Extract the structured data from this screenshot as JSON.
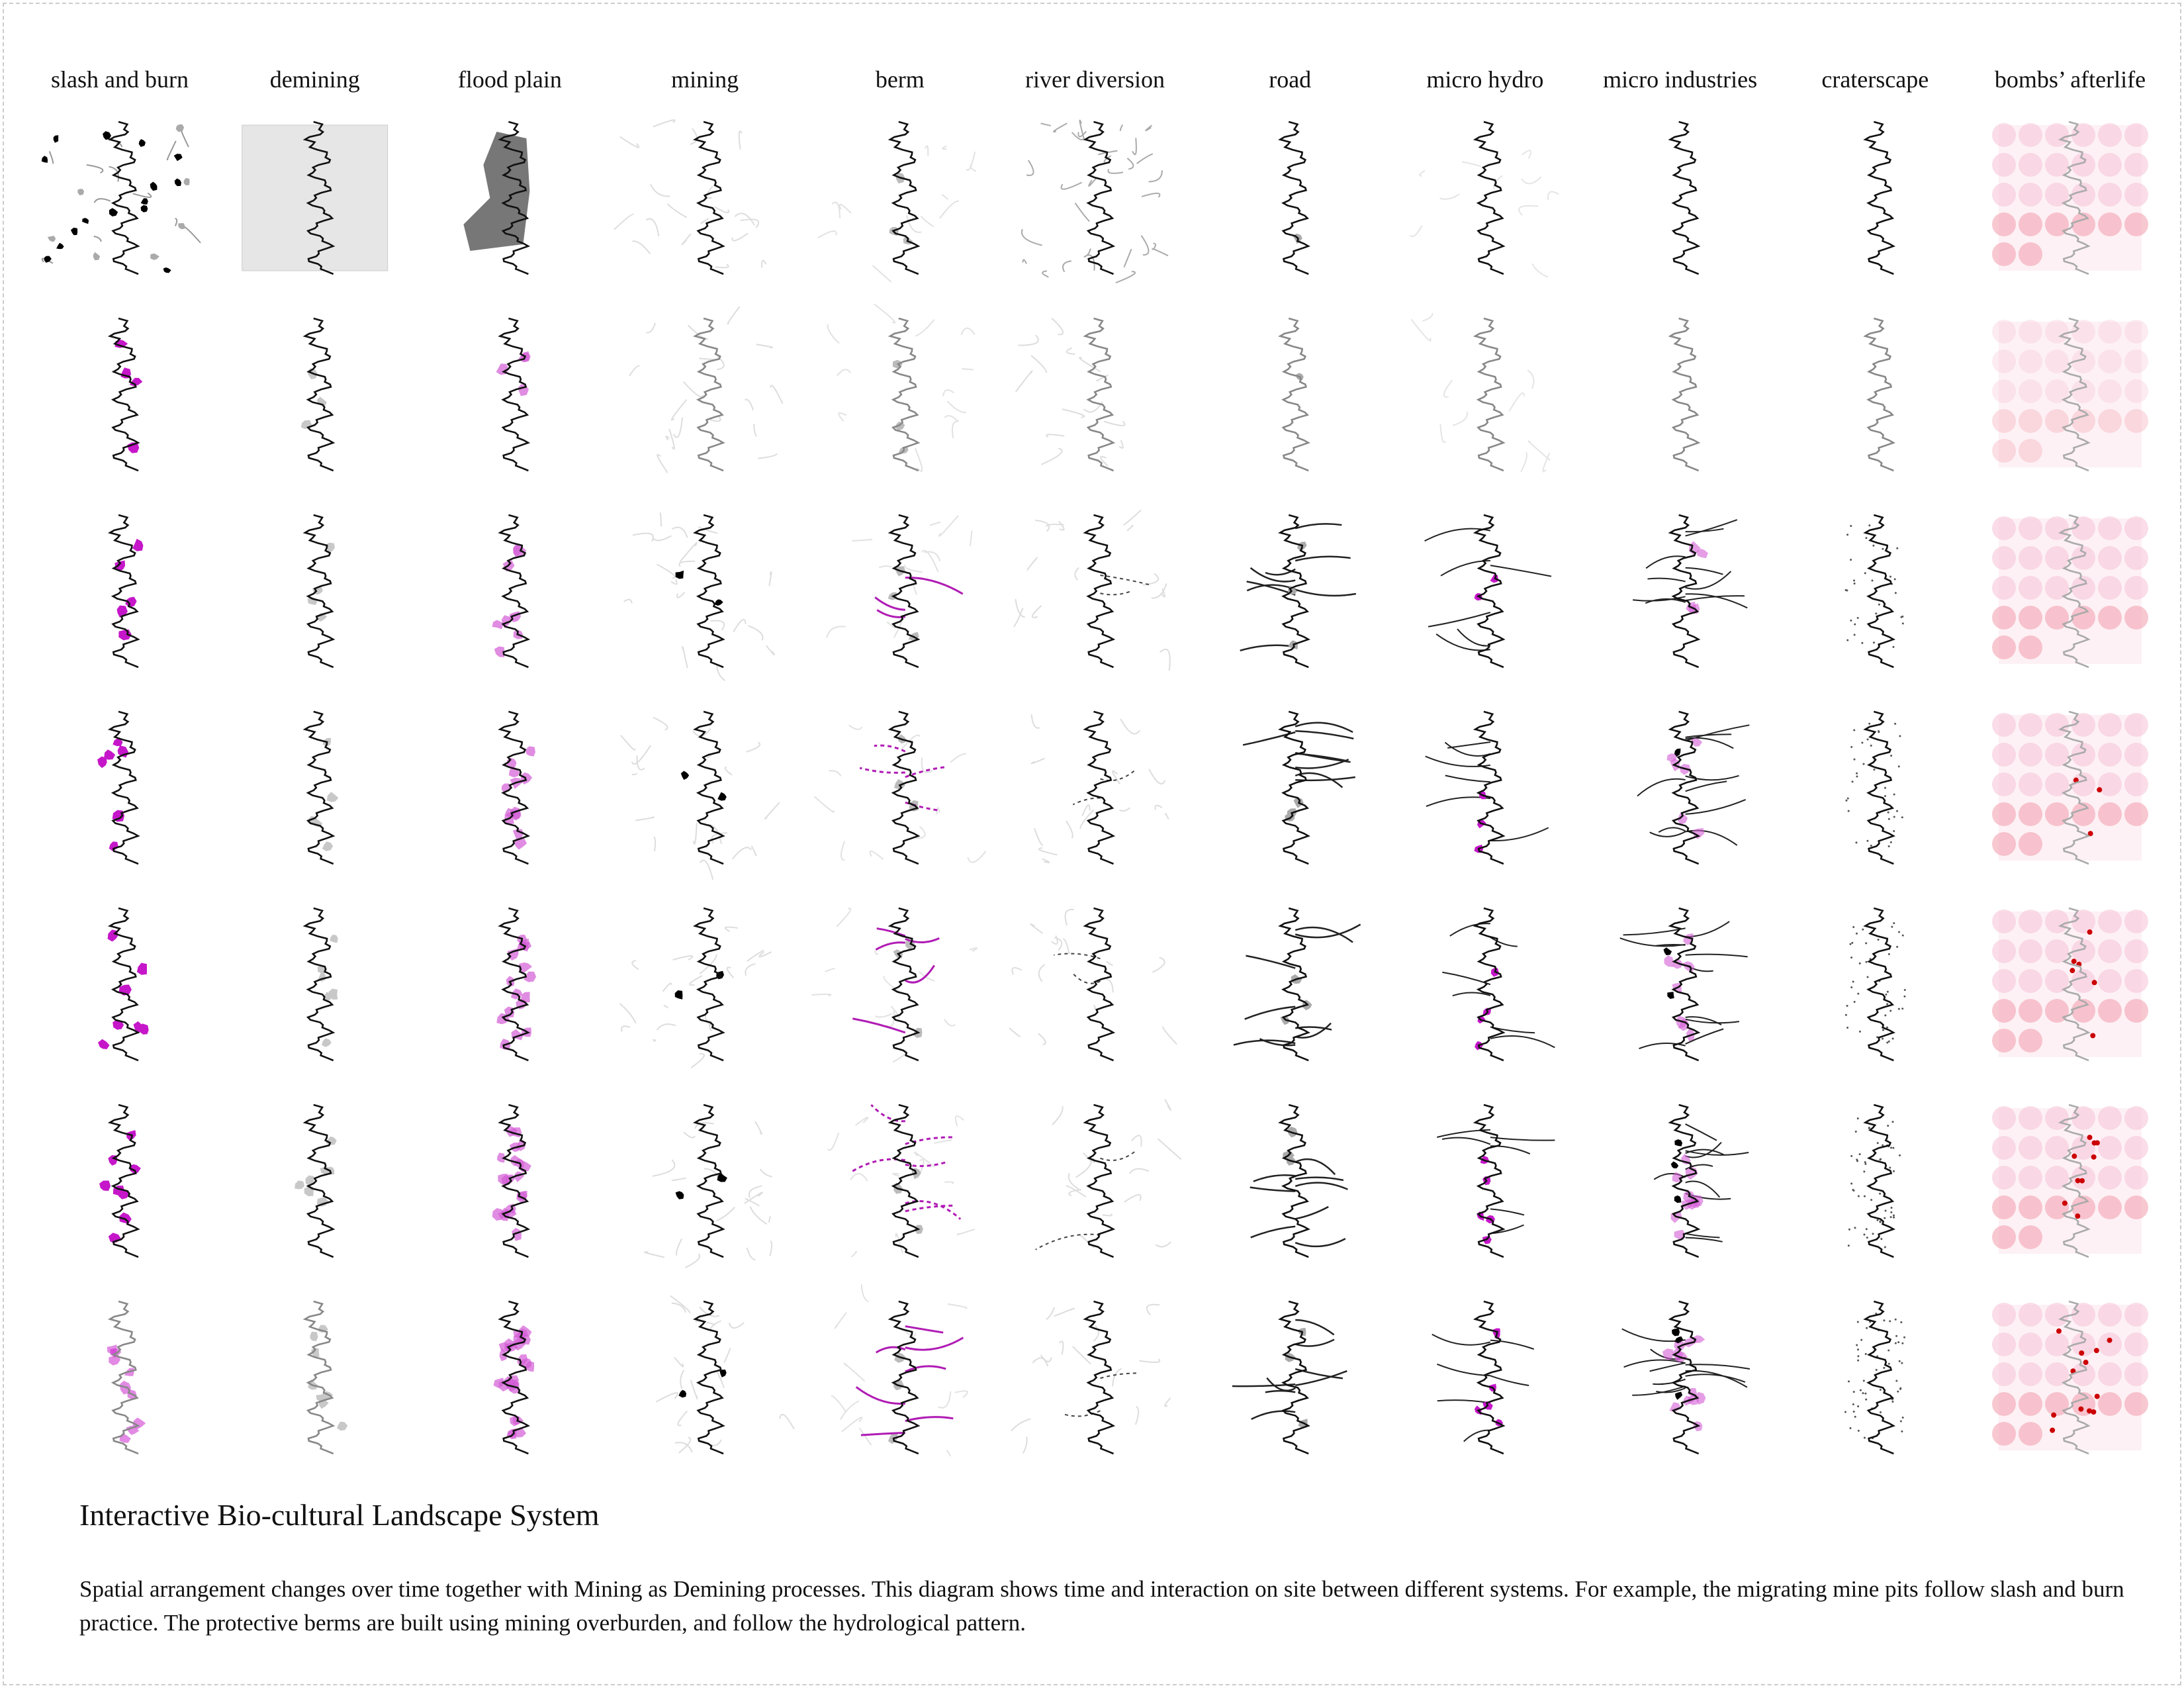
{
  "columns": [
    "slash and burn",
    "demining",
    "flood plain",
    "mining",
    "berm",
    "river diversion",
    "road",
    "micro hydro",
    "micro industries",
    "craterscape",
    "bombs’ afterlife"
  ],
  "title": "Interactive Bio-cultural Landscape System",
  "description": "Spatial arrangement changes over time together with Mining as Demining processes. This diagram shows time and interaction on site between different systems. For example, the migrating mine pits follow slash and burn practice. The protective berms are built using mining overburden, and follow the hydrological pattern."
}
